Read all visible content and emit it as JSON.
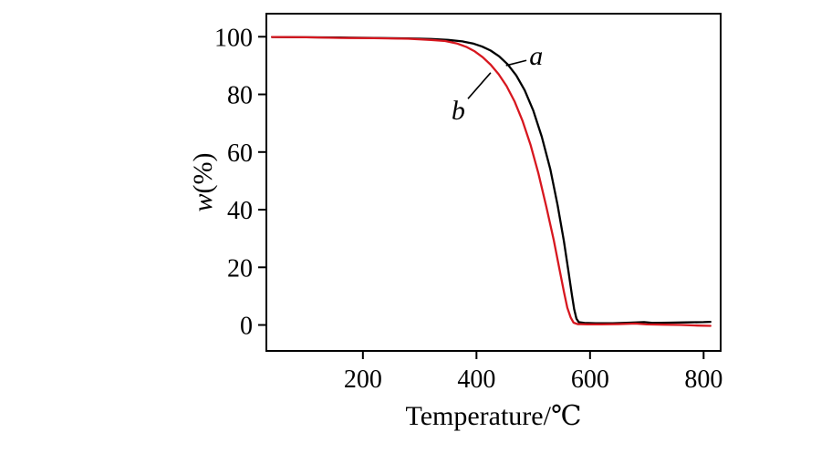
{
  "chart_data": {
    "type": "line",
    "title": "",
    "xlabel": "Temperature/℃",
    "ylabel_var": "w",
    "ylabel_unit": "(%)",
    "xlim": [
      30,
      830
    ],
    "ylim": [
      -9,
      108
    ],
    "xticks": [
      200,
      400,
      600,
      800
    ],
    "yticks": [
      0,
      20,
      40,
      60,
      80,
      100
    ],
    "grid": false,
    "frame": "box",
    "frame_color": "#000000",
    "legend_position": "none",
    "series": [
      {
        "name": "a",
        "color": "#000000",
        "x": [
          40,
          100,
          160,
          220,
          280,
          320,
          350,
          375,
          395,
          410,
          425,
          440,
          455,
          470,
          485,
          500,
          515,
          530,
          543,
          554,
          562,
          568,
          572,
          576,
          580,
          590,
          610,
          640,
          670,
          695,
          710,
          740,
          770,
          800,
          812
        ],
        "y": [
          99.9,
          99.8,
          99.7,
          99.6,
          99.4,
          99.2,
          98.9,
          98.4,
          97.6,
          96.6,
          95.2,
          93.2,
          90.4,
          86.6,
          81.4,
          74.4,
          65.3,
          54.0,
          41.5,
          29.0,
          18.5,
          10.5,
          5.5,
          2.2,
          1.0,
          0.7,
          0.6,
          0.6,
          0.8,
          1.0,
          0.7,
          0.8,
          0.9,
          1.0,
          1.1
        ]
      },
      {
        "name": "b",
        "color": "#d7171f",
        "x": [
          40,
          100,
          160,
          220,
          280,
          320,
          345,
          365,
          382,
          397,
          411,
          425,
          439,
          453,
          467,
          481,
          495,
          509,
          523,
          536,
          546,
          554,
          560,
          566,
          571,
          578,
          595,
          620,
          650,
          680,
          700,
          730,
          760,
          790,
          812
        ],
        "y": [
          99.9,
          99.8,
          99.6,
          99.5,
          99.3,
          98.9,
          98.5,
          97.7,
          96.5,
          94.9,
          92.9,
          90.3,
          87.0,
          82.9,
          77.6,
          70.9,
          62.6,
          52.6,
          41.0,
          29.5,
          19.5,
          11.5,
          6.0,
          2.5,
          0.8,
          0.3,
          0.2,
          0.2,
          0.3,
          0.5,
          0.2,
          0.1,
          0.0,
          -0.2,
          -0.3
        ]
      }
    ],
    "annotations": [
      {
        "label": "a",
        "label_x": 505,
        "label_y": 93.5,
        "line": [
          [
            488,
            91.8
          ],
          [
            452,
            90.0
          ]
        ],
        "color": "#000000"
      },
      {
        "label": "b",
        "label_x": 368,
        "label_y": 74.5,
        "line": [
          [
            385,
            78.5
          ],
          [
            425,
            87.5
          ]
        ],
        "color": "#000000"
      }
    ]
  }
}
